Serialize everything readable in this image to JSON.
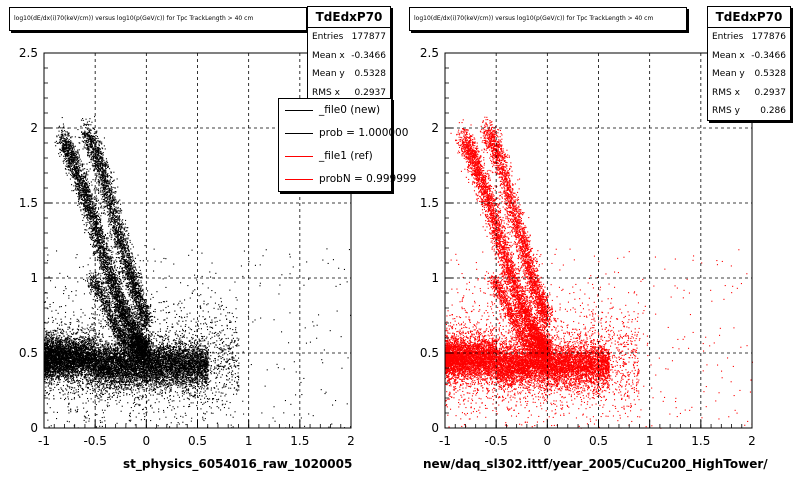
{
  "panels": [
    {
      "title": "log10(dE/dx(i)70(keV/cm)) versus log10(p(GeV/c)) for Tpc TrackLength > 40 cm",
      "xlabel": "st_physics_6054016_raw_1020005",
      "marker_color": "#000000",
      "stats": {
        "name": "TdEdxP70",
        "rows": [
          {
            "key": "Entries",
            "value": "177877"
          },
          {
            "key": "Mean x",
            "value": "-0.3466"
          },
          {
            "key": "Mean y",
            "value": "0.5328"
          },
          {
            "key": "RMS x",
            "value": "0.2937"
          }
        ]
      },
      "legend": [
        {
          "label": "_file0 (new)",
          "color": "#000000"
        },
        {
          "label": "prob = 1.000000",
          "color": "#000000"
        },
        {
          "label": "_file1 (ref)",
          "color": "#ff0000"
        },
        {
          "label": "probN = 0.999999",
          "color": "#ff0000"
        }
      ]
    },
    {
      "title": "log10(dE/dx(i)70(keV/cm)) versus log10(p(GeV/c)) for Tpc TrackLength > 40 cm",
      "xlabel": "new/daq_sl302.ittf/year_2005/CuCu200_HighTower/",
      "marker_color": "#ff0000",
      "stats": {
        "name": "TdEdxP70",
        "rows": [
          {
            "key": "Entries",
            "value": "177876"
          },
          {
            "key": "Mean x",
            "value": "-0.3466"
          },
          {
            "key": "Mean y",
            "value": "0.5328"
          },
          {
            "key": "RMS x",
            "value": "0.2937"
          },
          {
            "key": "RMS y",
            "value": "0.286"
          }
        ]
      }
    }
  ],
  "chart_data": [
    {
      "type": "scatter",
      "title": "log10(dE/dx(i)70(keV/cm)) versus log10(p(GeV/c)) for Tpc TrackLength > 40 cm",
      "xlabel": "st_physics_6054016_raw_1020005",
      "ylabel": "",
      "xlim": [
        -1,
        2
      ],
      "ylim": [
        0,
        2.5
      ],
      "xticks": [
        "-1",
        "-0.5",
        "0",
        "0.5",
        "1",
        "1.5",
        "2"
      ],
      "yticks": [
        "0",
        "0.5",
        "1",
        "1.5",
        "2",
        "2.5"
      ],
      "grid": true,
      "series": [
        {
          "name": "_file0 (new)",
          "color": "#000000",
          "entries": 177877,
          "mean_x": -0.3466,
          "mean_y": 0.5328,
          "rms_x": 0.2937
        }
      ],
      "bands": [
        {
          "x": [
            -0.83,
            -0.7,
            -0.55,
            -0.4,
            -0.25,
            -0.1,
            0.0
          ],
          "y": [
            1.95,
            1.75,
            1.45,
            1.1,
            0.8,
            0.6,
            0.5
          ]
        },
        {
          "x": [
            -0.6,
            -0.45,
            -0.3,
            -0.15,
            0.0
          ],
          "y": [
            2.0,
            1.75,
            1.35,
            1.0,
            0.7
          ]
        },
        {
          "x": [
            -0.55,
            -0.45,
            -0.35,
            -0.25,
            -0.1
          ],
          "y": [
            1.0,
            0.9,
            0.75,
            0.6,
            0.5
          ]
        }
      ]
    },
    {
      "type": "scatter",
      "title": "log10(dE/dx(i)70(keV/cm)) versus log10(p(GeV/c)) for Tpc TrackLength > 40 cm",
      "xlabel": "new/daq_sl302.ittf/year_2005/CuCu200_HighTower/",
      "ylabel": "",
      "xlim": [
        -1,
        2
      ],
      "ylim": [
        0,
        2.5
      ],
      "xticks": [
        "-1",
        "-0.5",
        "0",
        "0.5",
        "1",
        "1.5",
        "2"
      ],
      "yticks": [
        "0",
        "0.5",
        "1",
        "1.5",
        "2",
        "2.5"
      ],
      "grid": true,
      "series": [
        {
          "name": "_file1 (ref)",
          "color": "#ff0000",
          "entries": 177876,
          "mean_x": -0.3466,
          "mean_y": 0.5328,
          "rms_x": 0.2937,
          "rms_y": 0.286
        }
      ],
      "bands": [
        {
          "x": [
            -0.83,
            -0.7,
            -0.55,
            -0.4,
            -0.25,
            -0.1,
            0.0
          ],
          "y": [
            1.95,
            1.75,
            1.45,
            1.1,
            0.8,
            0.6,
            0.5
          ]
        },
        {
          "x": [
            -0.6,
            -0.45,
            -0.3,
            -0.15,
            0.0
          ],
          "y": [
            2.0,
            1.75,
            1.35,
            1.0,
            0.7
          ]
        },
        {
          "x": [
            -0.55,
            -0.45,
            -0.35,
            -0.25,
            -0.1
          ],
          "y": [
            1.0,
            0.9,
            0.75,
            0.6,
            0.5
          ]
        }
      ]
    }
  ]
}
